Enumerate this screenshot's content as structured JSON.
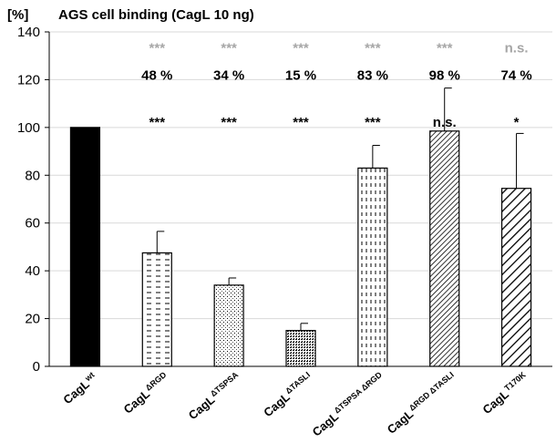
{
  "chart_data": {
    "type": "bar",
    "title": "AGS cell binding (CagL 10 ng)",
    "ylabel": "[%]",
    "ylim": [
      0,
      140
    ],
    "yticks": [
      "0",
      "20",
      "40",
      "60",
      "80",
      "100",
      "120",
      "140"
    ],
    "grid": true,
    "categories": [
      {
        "base": "CagL",
        "sup": "wt"
      },
      {
        "base": "CagL",
        "sup": "ΔRGD"
      },
      {
        "base": "CagL",
        "sup": "ΔTSPSA"
      },
      {
        "base": "CagL",
        "sup": "ΔTASLI"
      },
      {
        "base": "CagL",
        "sup": "ΔTSPSA ΔRGD"
      },
      {
        "base": "CagL",
        "sup": "ΔRGD ΔTASLI"
      },
      {
        "base": "CagL",
        "sup": "T170K"
      }
    ],
    "values": [
      100,
      47.5,
      34,
      15,
      83,
      98.5,
      74.5
    ],
    "errors": [
      0,
      9,
      3,
      3,
      9.5,
      18,
      23
    ],
    "percent_labels": [
      "",
      "48 %",
      "34 %",
      "15 %",
      "83 %",
      "98 %",
      "74 %"
    ],
    "significance_vs_wt": [
      "",
      "***",
      "***",
      "***",
      "***",
      "n.s.",
      "*"
    ],
    "significance_top": [
      "",
      "***",
      "***",
      "***",
      "***",
      "***",
      "n.s."
    ],
    "patterns": [
      "solid-black",
      "horizontal-dashes",
      "fine-dots",
      "dense-dots",
      "vertical-dashes",
      "diagonal-dense",
      "diagonal-wide"
    ]
  }
}
